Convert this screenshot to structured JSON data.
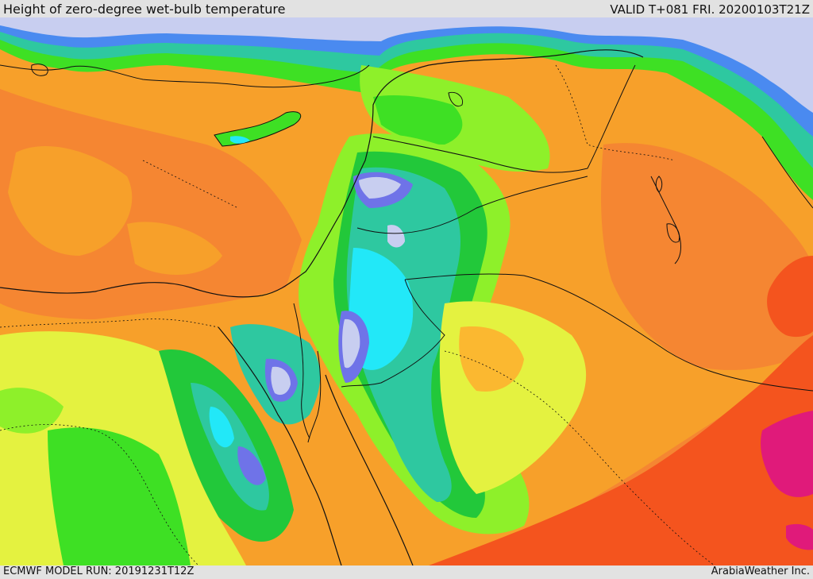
{
  "header": {
    "title": "Height of zero-degree wet-bulb temperature",
    "valid": "VALID T+081 FRI. 20200103T21Z"
  },
  "footer": {
    "model_run": "ECMWF MODEL RUN: 20191231T12Z",
    "credit": "ArabiaWeather Inc."
  },
  "palette": {
    "lavender": "#c8cef0",
    "blue_violet": "#6f73e8",
    "blue": "#4a8af0",
    "cyan": "#22e8f8",
    "teal": "#2ec8a0",
    "green": "#22c83a",
    "bright_green": "#3ee024",
    "yellow_green": "#8ef02a",
    "yellow": "#e4f240",
    "light_orange": "#fbb830",
    "orange": "#f7a02a",
    "dark_orange": "#f58632",
    "red_orange": "#f4541e",
    "magenta": "#e01a7a"
  }
}
